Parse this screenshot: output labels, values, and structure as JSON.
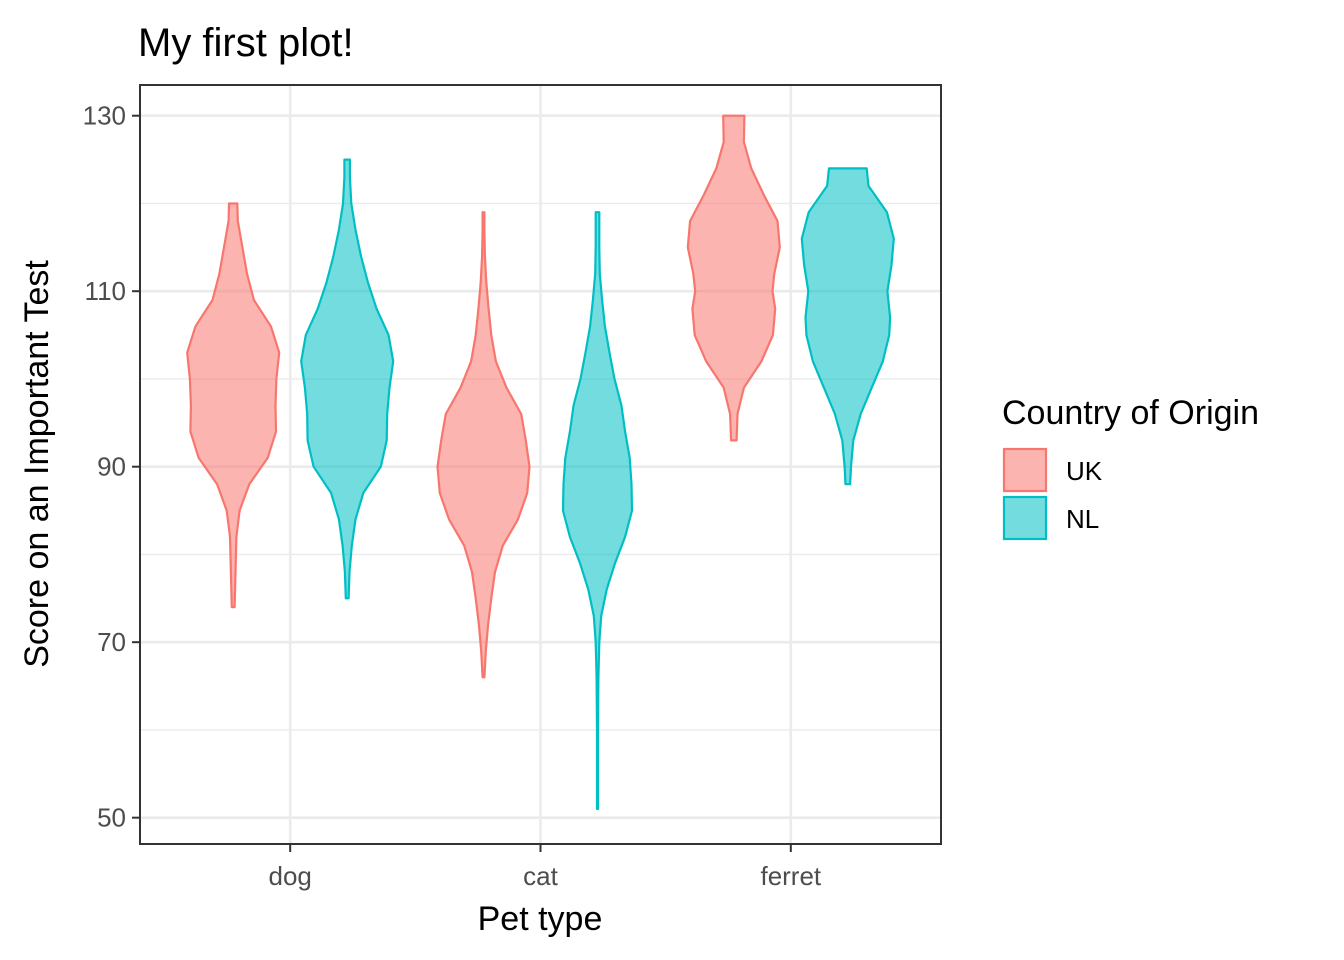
{
  "chart_data": {
    "type": "violin",
    "title": "My first plot!",
    "xlabel": "Pet type",
    "ylabel": "Score on an Important Test",
    "categories": [
      "dog",
      "cat",
      "ferret"
    ],
    "y_ticks": [
      50,
      70,
      90,
      110,
      130
    ],
    "ylim": [
      47,
      133.5
    ],
    "grid": true,
    "legend": {
      "title": "Country of Origin",
      "position": "right",
      "entries": [
        {
          "name": "UK",
          "color": "#F8766D"
        },
        {
          "name": "NL",
          "color": "#00BFC4"
        }
      ]
    },
    "series": [
      {
        "name": "UK",
        "color": "#F8766D",
        "violins": [
          {
            "category": "dog",
            "min": 74,
            "max": 120,
            "profile": [
              [
                74,
                0.03
              ],
              [
                78,
                0.05
              ],
              [
                82,
                0.07
              ],
              [
                85,
                0.14
              ],
              [
                88,
                0.35
              ],
              [
                91,
                0.75
              ],
              [
                94,
                0.93
              ],
              [
                97,
                0.92
              ],
              [
                100,
                0.94
              ],
              [
                103,
                1.0
              ],
              [
                106,
                0.82
              ],
              [
                109,
                0.45
              ],
              [
                112,
                0.3
              ],
              [
                115,
                0.2
              ],
              [
                118,
                0.1
              ],
              [
                120,
                0.09
              ]
            ]
          },
          {
            "category": "cat",
            "min": 66,
            "max": 119,
            "profile": [
              [
                66,
                0.02
              ],
              [
                69,
                0.05
              ],
              [
                72,
                0.1
              ],
              [
                75,
                0.17
              ],
              [
                78,
                0.25
              ],
              [
                81,
                0.42
              ],
              [
                84,
                0.75
              ],
              [
                87,
                0.95
              ],
              [
                90,
                1.0
              ],
              [
                93,
                0.92
              ],
              [
                96,
                0.82
              ],
              [
                99,
                0.5
              ],
              [
                102,
                0.27
              ],
              [
                105,
                0.17
              ],
              [
                108,
                0.11
              ],
              [
                111,
                0.06
              ],
              [
                114,
                0.03
              ],
              [
                117,
                0.02
              ],
              [
                119,
                0.02
              ]
            ]
          },
          {
            "category": "ferret",
            "min": 93,
            "max": 130,
            "profile": [
              [
                93,
                0.06
              ],
              [
                96,
                0.08
              ],
              [
                99,
                0.22
              ],
              [
                102,
                0.6
              ],
              [
                105,
                0.85
              ],
              [
                108,
                0.9
              ],
              [
                110,
                0.84
              ],
              [
                112,
                0.88
              ],
              [
                115,
                1.0
              ],
              [
                118,
                0.95
              ],
              [
                121,
                0.65
              ],
              [
                124,
                0.38
              ],
              [
                127,
                0.22
              ],
              [
                130,
                0.23
              ]
            ]
          }
        ]
      },
      {
        "name": "NL",
        "color": "#00BFC4",
        "violins": [
          {
            "category": "dog",
            "min": 75,
            "max": 125,
            "profile": [
              [
                75,
                0.03
              ],
              [
                78,
                0.05
              ],
              [
                81,
                0.1
              ],
              [
                84,
                0.18
              ],
              [
                87,
                0.35
              ],
              [
                90,
                0.73
              ],
              [
                93,
                0.86
              ],
              [
                96,
                0.87
              ],
              [
                99,
                0.92
              ],
              [
                102,
                1.0
              ],
              [
                105,
                0.9
              ],
              [
                108,
                0.64
              ],
              [
                111,
                0.45
              ],
              [
                114,
                0.3
              ],
              [
                117,
                0.18
              ],
              [
                120,
                0.09
              ],
              [
                123,
                0.06
              ],
              [
                125,
                0.06
              ]
            ]
          },
          {
            "category": "cat",
            "min": 51,
            "max": 119,
            "profile": [
              [
                51,
                0.01
              ],
              [
                60,
                0.01
              ],
              [
                66,
                0.02
              ],
              [
                70,
                0.04
              ],
              [
                73,
                0.08
              ],
              [
                76,
                0.2
              ],
              [
                79,
                0.38
              ],
              [
                82,
                0.6
              ],
              [
                85,
                0.75
              ],
              [
                88,
                0.74
              ],
              [
                91,
                0.7
              ],
              [
                94,
                0.6
              ],
              [
                97,
                0.52
              ],
              [
                100,
                0.37
              ],
              [
                103,
                0.26
              ],
              [
                106,
                0.16
              ],
              [
                109,
                0.1
              ],
              [
                112,
                0.05
              ],
              [
                115,
                0.04
              ],
              [
                119,
                0.04
              ]
            ]
          },
          {
            "category": "ferret",
            "min": 88,
            "max": 124,
            "profile": [
              [
                88,
                0.05
              ],
              [
                90,
                0.07
              ],
              [
                93,
                0.12
              ],
              [
                96,
                0.28
              ],
              [
                99,
                0.52
              ],
              [
                102,
                0.76
              ],
              [
                105,
                0.9
              ],
              [
                107,
                0.92
              ],
              [
                110,
                0.86
              ],
              [
                113,
                0.95
              ],
              [
                116,
                1.0
              ],
              [
                119,
                0.85
              ],
              [
                122,
                0.45
              ],
              [
                124,
                0.41
              ]
            ]
          }
        ]
      }
    ]
  }
}
